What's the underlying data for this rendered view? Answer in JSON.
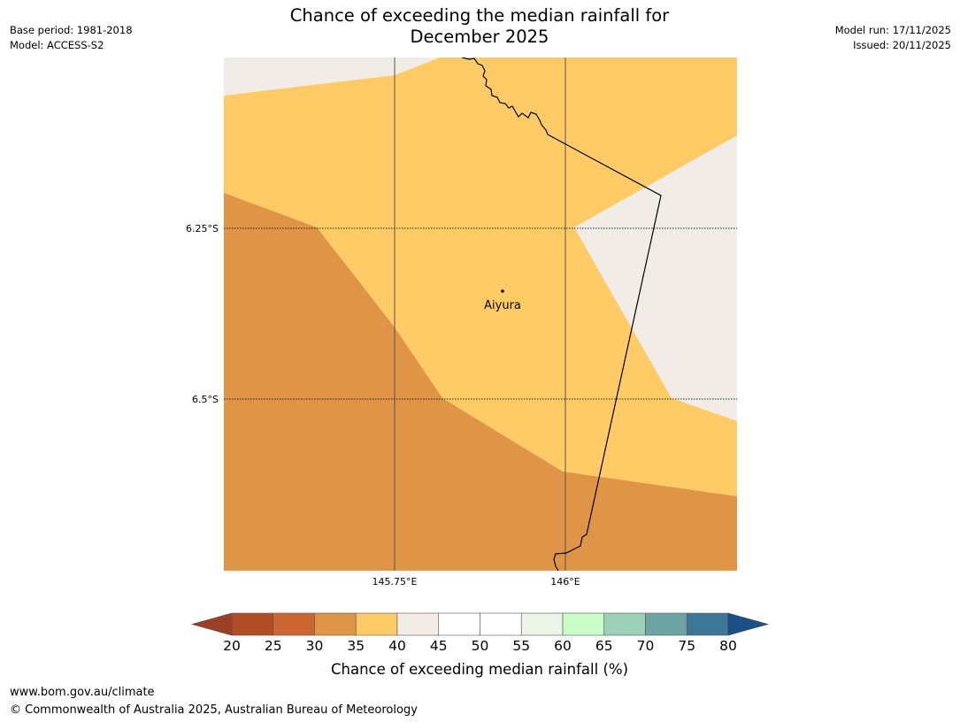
{
  "title": {
    "line1": "Chance of exceeding the median rainfall for",
    "line2": "December 2025"
  },
  "meta_left": {
    "base_period": "Base period: 1981-2018",
    "model": "Model: ACCESS-S2"
  },
  "meta_right": {
    "model_run": "Model run: 17/11/2025",
    "issued": "Issued: 20/11/2025"
  },
  "map": {
    "place_label": "Aiyura",
    "lat_labels": [
      "6.25°S",
      "6.5°S"
    ],
    "lon_labels": [
      "145.75°E",
      "146°E"
    ],
    "region_colors": {
      "30_35": "#e09447",
      "35_40": "#fecb66",
      "40_45": "#f1ece6"
    }
  },
  "colorbar": {
    "ticks": [
      "20",
      "25",
      "30",
      "35",
      "40",
      "45",
      "50",
      "55",
      "60",
      "65",
      "70",
      "75",
      "80"
    ],
    "colors": [
      "#b04d25",
      "#cc6632",
      "#e09447",
      "#fecb66",
      "#f1ece6",
      "#ffffff",
      "#ffffff",
      "#eaf5e8",
      "#c9fcc9",
      "#9bcfb8",
      "#6ea3a3",
      "#3d7697"
    ],
    "under_color": "#9d3f27",
    "over_color": "#1a4f88",
    "title": "Chance of exceeding median rainfall (%)"
  },
  "footer": {
    "url": "www.bom.gov.au/climate",
    "copyright": "© Commonwealth of Australia 2025, Australian Bureau of Meteorology"
  }
}
